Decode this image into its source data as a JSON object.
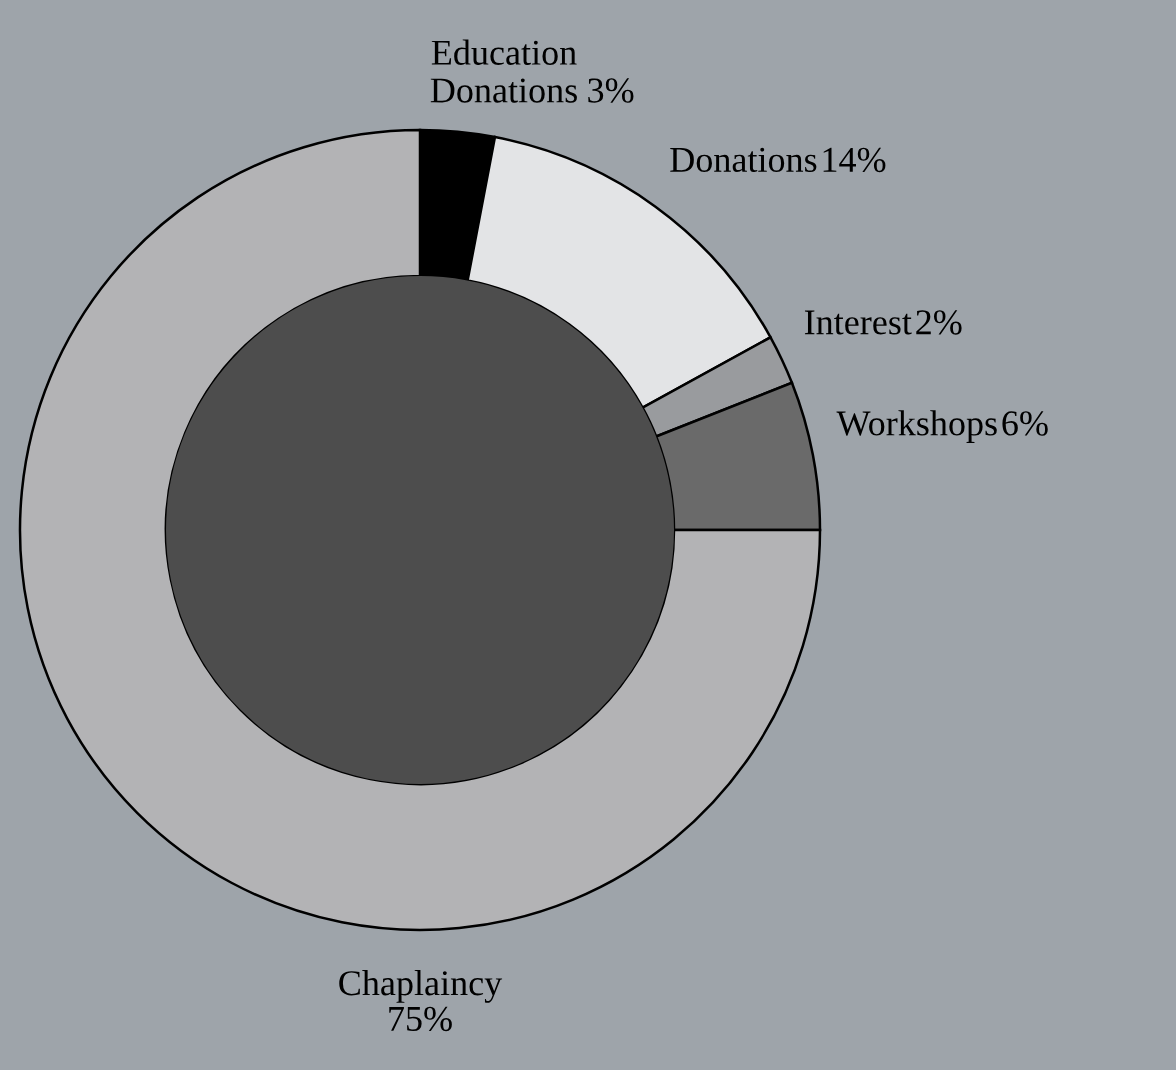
{
  "chart_data": {
    "type": "donut",
    "categories": [
      "Education Donations",
      "Donations",
      "Interest",
      "Workshops",
      "Chaplaincy"
    ],
    "values": [
      3,
      14,
      2,
      6,
      75
    ],
    "colors": [
      "#000000",
      "#e3e4e6",
      "#999b9e",
      "#6a6a6a",
      "#b3b3b5"
    ],
    "value_labels": [
      "3%",
      "14%",
      "2%",
      "6%",
      "75%"
    ],
    "legend": false
  }
}
